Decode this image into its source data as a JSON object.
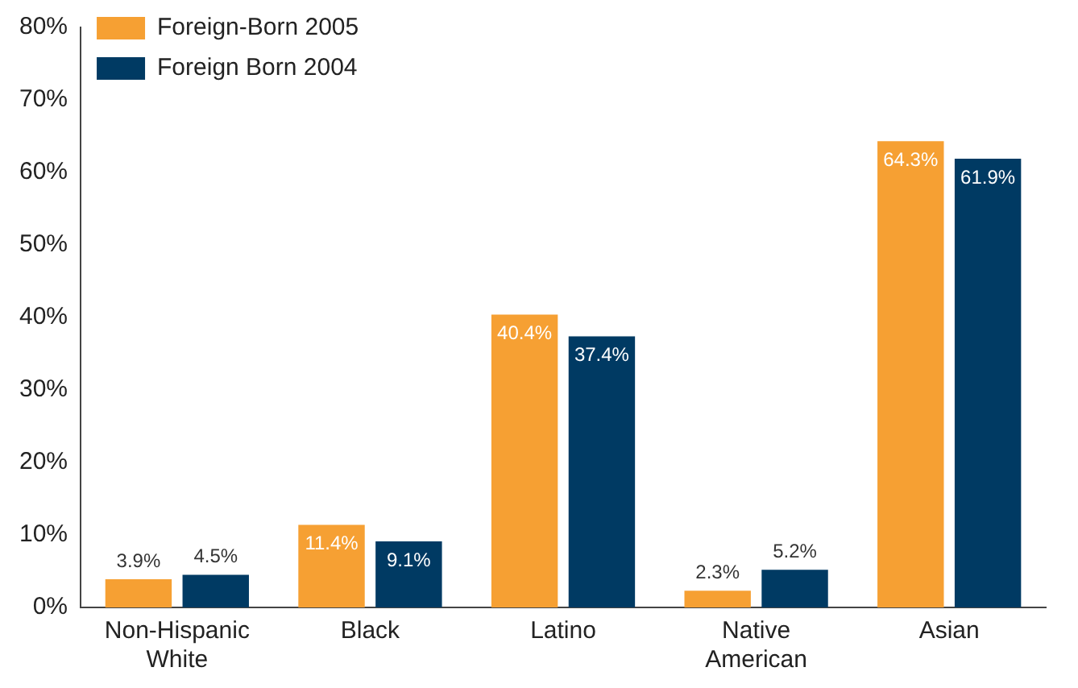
{
  "chart_data": {
    "type": "bar",
    "categories": [
      "Non-Hispanic White",
      "Black",
      "Latino",
      "Native American",
      "Asian"
    ],
    "series": [
      {
        "name": "Foreign-Born 2005",
        "color": "#f6a033",
        "values": [
          3.9,
          11.4,
          40.4,
          2.3,
          64.3
        ],
        "value_labels": [
          "3.9%",
          "11.4%",
          "40.4%",
          "2.3%",
          "64.3%"
        ]
      },
      {
        "name": "Foreign Born 2004",
        "color": "#003a63",
        "values": [
          4.5,
          9.1,
          37.4,
          5.2,
          61.9
        ],
        "value_labels": [
          "4.5%",
          "9.1%",
          "37.4%",
          "5.2%",
          "61.9%"
        ]
      }
    ],
    "ylim": [
      0,
      80
    ],
    "yticks": [
      {
        "value": 0,
        "label": "0%"
      },
      {
        "value": 10,
        "label": "10%"
      },
      {
        "value": 20,
        "label": "20%"
      },
      {
        "value": 30,
        "label": "30%"
      },
      {
        "value": 40,
        "label": "40%"
      },
      {
        "value": 50,
        "label": "50%"
      },
      {
        "value": 60,
        "label": "60%"
      },
      {
        "value": 70,
        "label": "70%"
      },
      {
        "value": 80,
        "label": "80%"
      }
    ],
    "legend": "top left"
  }
}
